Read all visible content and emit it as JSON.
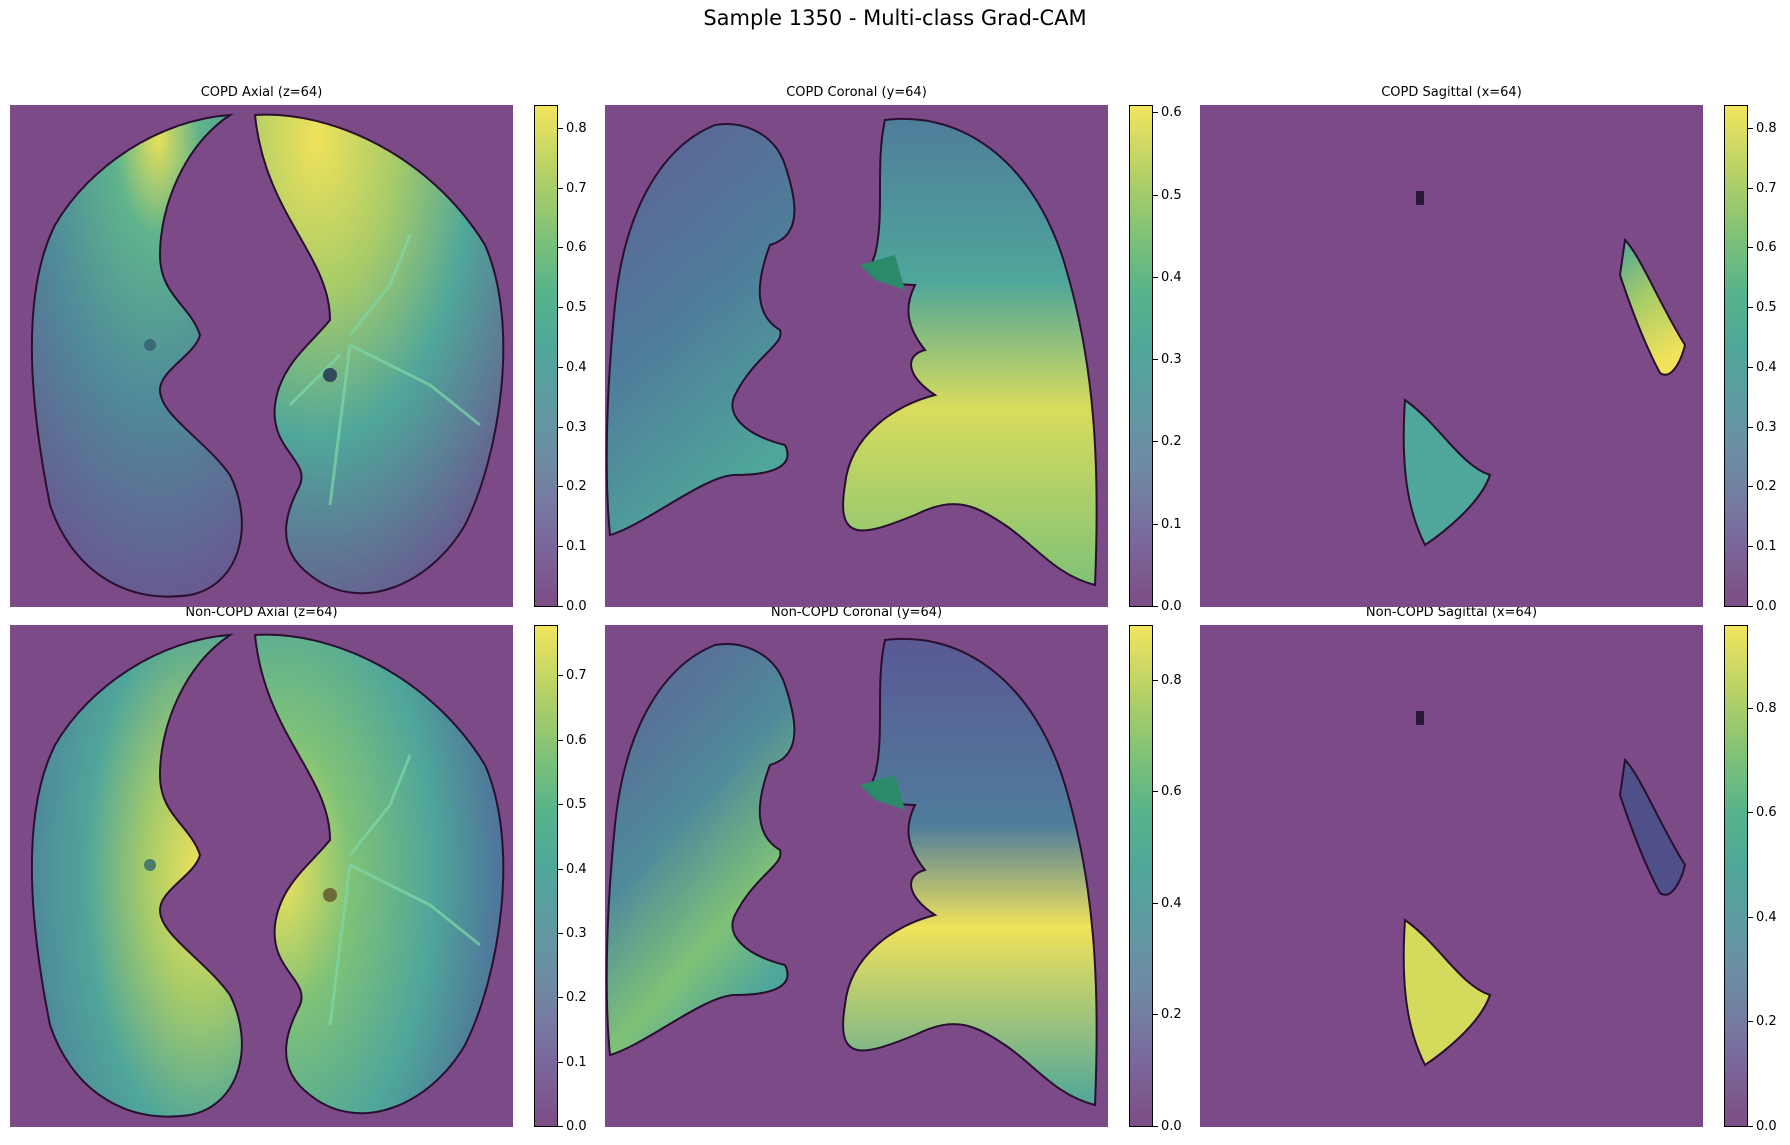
{
  "suptitle": "Sample 1350 - Multi-class Grad-CAM",
  "colormap": "viridis",
  "background_color": "#7b4a87",
  "rows": [
    {
      "class": "COPD",
      "panels": [
        {
          "title": "COPD Axial (z=64)",
          "view": "axial",
          "colorbar_ticks": [
            "0.0",
            "0.1",
            "0.2",
            "0.3",
            "0.4",
            "0.5",
            "0.6",
            "0.7",
            "0.8"
          ],
          "colorbar_max": 0.84
        },
        {
          "title": "COPD Coronal (y=64)",
          "view": "coronal",
          "colorbar_ticks": [
            "0.0",
            "0.1",
            "0.2",
            "0.3",
            "0.4",
            "0.5",
            "0.6"
          ],
          "colorbar_max": 0.61
        },
        {
          "title": "COPD Sagittal (x=64)",
          "view": "sagittal",
          "colorbar_ticks": [
            "0.0",
            "0.1",
            "0.2",
            "0.3",
            "0.4",
            "0.5",
            "0.6",
            "0.7",
            "0.8"
          ],
          "colorbar_max": 0.84
        }
      ]
    },
    {
      "class": "Non-COPD",
      "panels": [
        {
          "title": "Non-COPD Axial (z=64)",
          "view": "axial",
          "colorbar_ticks": [
            "0.0",
            "0.1",
            "0.2",
            "0.3",
            "0.4",
            "0.5",
            "0.6",
            "0.7"
          ],
          "colorbar_max": 0.78
        },
        {
          "title": "Non-COPD Coronal (y=64)",
          "view": "coronal",
          "colorbar_ticks": [
            "0.0",
            "0.2",
            "0.4",
            "0.6",
            "0.8"
          ],
          "colorbar_max": 0.9
        },
        {
          "title": "Non-COPD Sagittal (x=64)",
          "view": "sagittal",
          "colorbar_ticks": [
            "0.0",
            "0.2",
            "0.4",
            "0.6",
            "0.8"
          ],
          "colorbar_max": 0.96
        }
      ]
    }
  ]
}
